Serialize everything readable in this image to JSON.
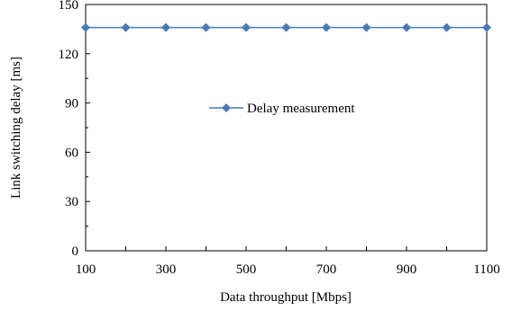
{
  "chart_data": {
    "type": "line",
    "x": [
      100,
      200,
      300,
      400,
      500,
      600,
      700,
      800,
      900,
      1000,
      1100
    ],
    "series": [
      {
        "name": "Delay measurement",
        "values": [
          136,
          136,
          136,
          136,
          136,
          136,
          136,
          136,
          136,
          136,
          136
        ],
        "color": "#4a7ab5",
        "marker": "diamond"
      }
    ],
    "xlabel": "Data throughput [Mbps]",
    "ylabel": "Link switching delay [ms]",
    "xlim": [
      100,
      1100
    ],
    "ylim": [
      0,
      150
    ],
    "xticks": [
      "100",
      "300",
      "500",
      "700",
      "900",
      "1100"
    ],
    "yticks": [
      "0",
      "30",
      "60",
      "90",
      "120",
      "150"
    ],
    "grid": false,
    "legend_position": "center"
  }
}
